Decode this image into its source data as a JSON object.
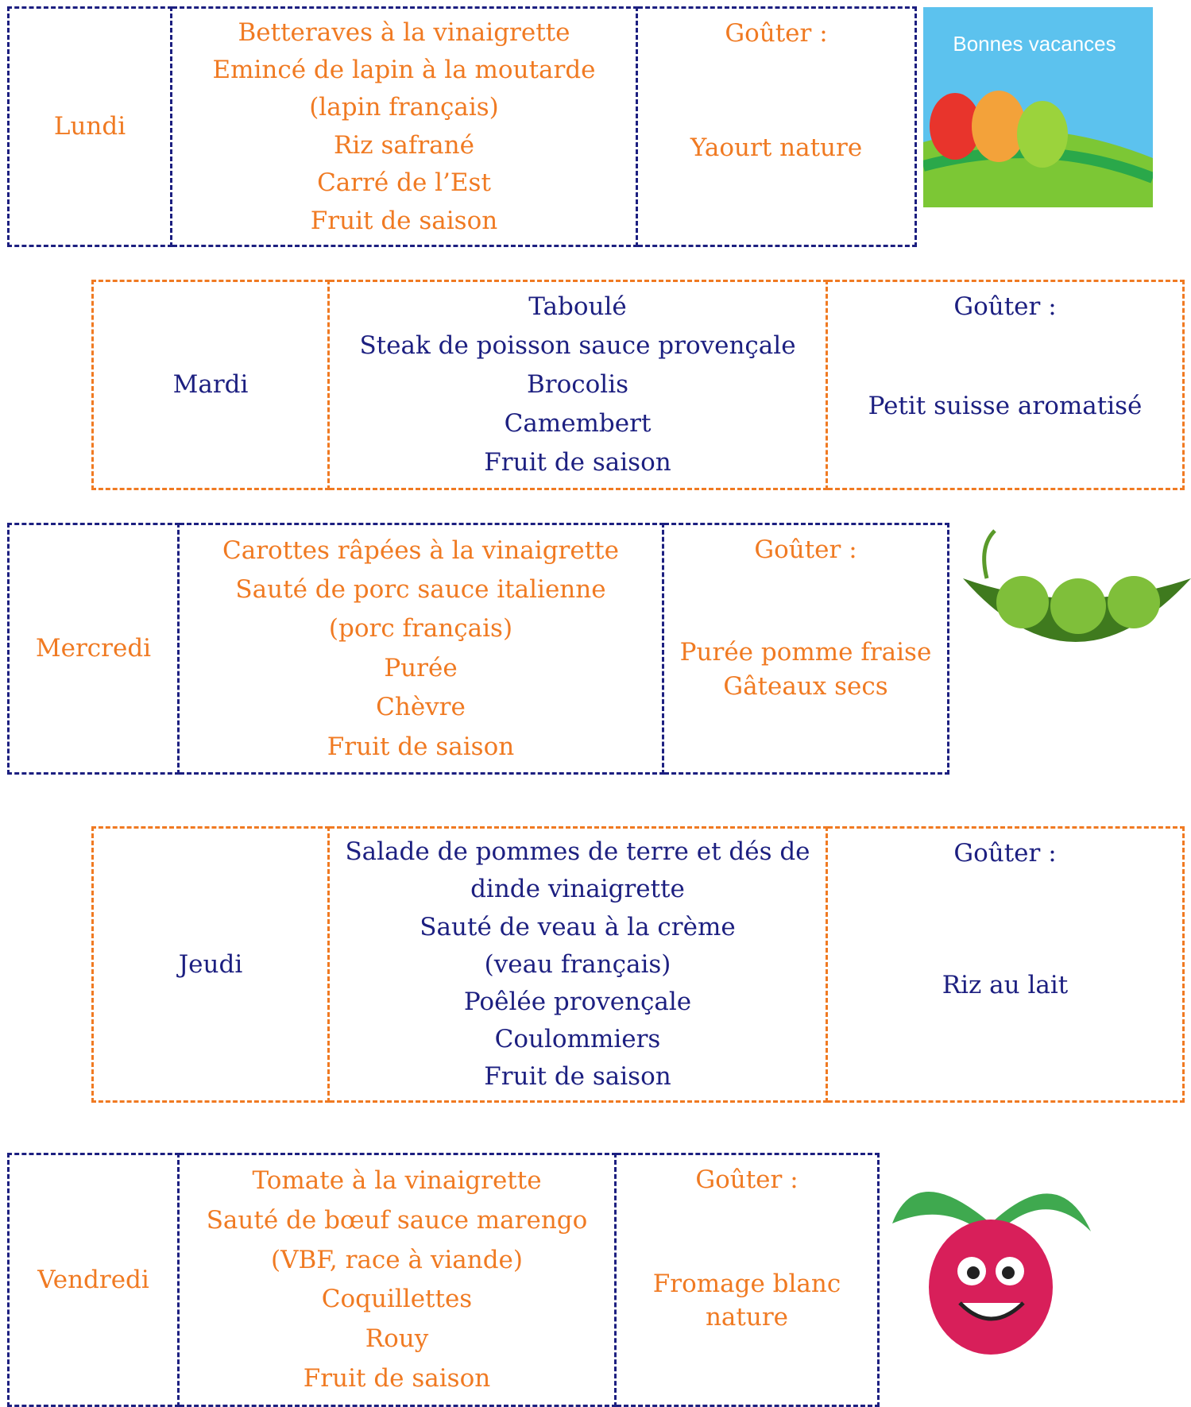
{
  "days": [
    {
      "day": "Lundi",
      "menu": [
        "Betteraves à la vinaigrette",
        "Emincé de lapin à la moutarde",
        "(lapin français)",
        "Riz safrané",
        "Carré de l’Est",
        "Fruit de saison"
      ],
      "snack_label": "Goûter :",
      "snack": [
        "Yaourt nature"
      ]
    },
    {
      "day": "Mardi",
      "menu": [
        "Taboulé",
        "Steak de poisson sauce provençale",
        "Brocolis",
        "Camembert",
        "Fruit de saison"
      ],
      "snack_label": "Goûter :",
      "snack": [
        "Petit suisse aromatisé"
      ]
    },
    {
      "day": "Mercredi",
      "menu": [
        "Carottes râpées à la vinaigrette",
        "Sauté de porc sauce italienne",
        "(porc français)",
        "Purée",
        "Chèvre",
        "Fruit de saison"
      ],
      "snack_label": "Goûter :",
      "snack": [
        "Purée pomme fraise",
        "Gâteaux secs"
      ]
    },
    {
      "day": "Jeudi",
      "menu": [
        "Salade de pommes de terre et dés de",
        "dinde vinaigrette",
        "Sauté de veau à la crème",
        "(veau français)",
        "Poêlée provençale",
        "Coulommiers",
        "Fruit de saison"
      ],
      "snack_label": "Goûter :",
      "snack": [
        "Riz au lait"
      ]
    },
    {
      "day": "Vendredi",
      "menu": [
        "Tomate à la vinaigrette",
        "Sauté de bœuf sauce marengo",
        "(VBF, race à viande)",
        "Coquillettes",
        "Rouy",
        "Fruit de saison"
      ],
      "snack_label": "Goûter :",
      "snack": [
        "Fromage blanc",
        "nature"
      ]
    }
  ],
  "banner_text": "Bonnes vacances"
}
